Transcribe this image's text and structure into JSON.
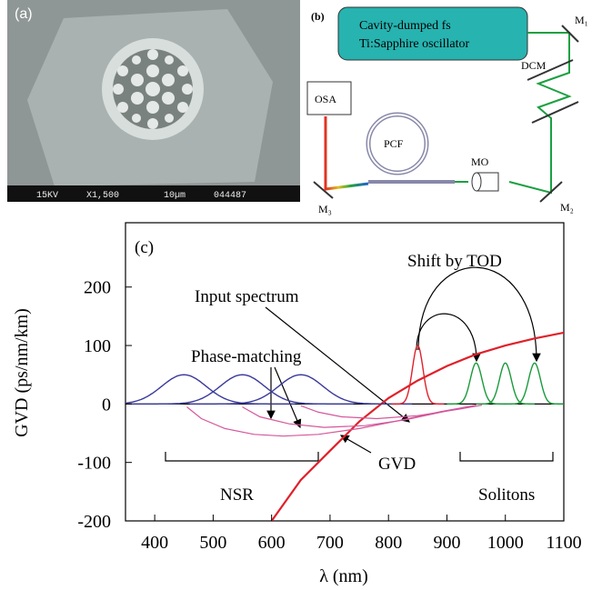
{
  "panel_a": {
    "label": "(a)",
    "scale_bar": [
      "15KV",
      "X1,500",
      "10µm",
      "044487"
    ]
  },
  "panel_b": {
    "label": "(b)",
    "source": [
      "Cavity-dumped fs",
      "Ti:Sapphire oscillator"
    ],
    "components": {
      "osa": "OSA",
      "pcf": "PCF",
      "mo": "MO",
      "dcm": "DCM",
      "m1": "M₁",
      "m2": "M₂",
      "m3": "M₃"
    }
  },
  "chart_data": {
    "type": "line",
    "label": "(c)",
    "x_label": "λ (nm)",
    "y_label": "GVD (ps/nm/km)",
    "xlim": [
      350,
      1100
    ],
    "xticks": [
      400,
      500,
      600,
      700,
      800,
      900,
      1000,
      1100
    ],
    "ylim": [
      -200,
      310
    ],
    "yticks": [
      -200,
      -100,
      0,
      100,
      200
    ],
    "series": [
      {
        "color": "#e0202a",
        "x": [
          600,
          650,
          700,
          750,
          800,
          850,
          900,
          950,
          1000,
          1050,
          1100
        ],
        "values": [
          -200,
          -130,
          -80,
          -30,
          10,
          40,
          65,
          85,
          100,
          112,
          122
        ]
      },
      {
        "color": "#d4579a",
        "x": [
          455,
          480,
          520,
          570,
          620,
          680,
          750,
          820,
          890,
          950
        ],
        "values": [
          -5,
          -25,
          -42,
          -52,
          -55,
          -52,
          -42,
          -28,
          -13,
          -2
        ]
      },
      {
        "color": "#d4579a",
        "x": [
          550,
          580,
          630,
          690,
          760,
          830,
          900,
          950
        ],
        "values": [
          -5,
          -22,
          -34,
          -40,
          -37,
          -27,
          -12,
          -2
        ]
      },
      {
        "color": "#d4579a",
        "x": [
          650,
          680,
          720,
          780,
          850,
          920,
          960
        ],
        "values": [
          -3,
          -14,
          -22,
          -25,
          -20,
          -9,
          -2
        ]
      }
    ],
    "peaks": [
      {
        "center": 450,
        "height": 50,
        "width": 38,
        "color": "#3a3a9a"
      },
      {
        "center": 550,
        "height": 50,
        "width": 38,
        "color": "#3a3a9a"
      },
      {
        "center": 650,
        "height": 50,
        "width": 38,
        "color": "#3a3a9a"
      },
      {
        "center": 850,
        "height": 100,
        "width": 9,
        "color": "#e0202a"
      },
      {
        "center": 950,
        "height": 70,
        "width": 10,
        "color": "#1a9a3a"
      },
      {
        "center": 1000,
        "height": 70,
        "width": 10,
        "color": "#1a9a3a"
      },
      {
        "center": 1050,
        "height": 70,
        "width": 10,
        "color": "#1a9a3a"
      }
    ],
    "annotations": [
      "Shift by TOD",
      "Input spectrum",
      "Phase-matching",
      "GVD",
      "NSR",
      "Solitons"
    ]
  }
}
